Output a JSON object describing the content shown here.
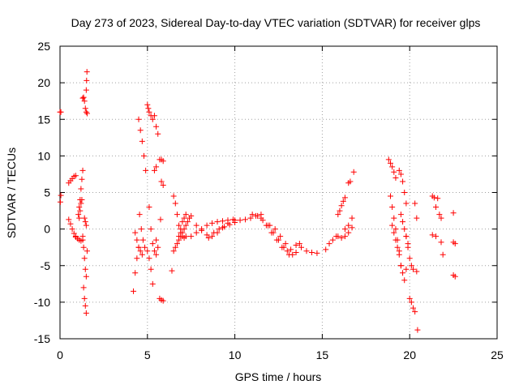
{
  "chart_data": {
    "type": "scatter",
    "title": "Day 273 of 2023, Sidereal Day-to-day VTEC variation (SDTVAR) for receiver glps",
    "xlabel": "GPS time / hours",
    "ylabel": "SDTVAR / TECUs",
    "xlim": [
      0,
      25
    ],
    "ylim": [
      -15,
      25
    ],
    "xticks": [
      0,
      5,
      10,
      15,
      20,
      25
    ],
    "yticks": [
      -15,
      -10,
      -5,
      0,
      5,
      10,
      15,
      20,
      25
    ],
    "grid": true,
    "marker": "+",
    "marker_color": "#ff0000",
    "series": [
      {
        "name": "SDTVAR",
        "segments": [
          {
            "x": [
              0.0,
              0.05
            ],
            "y": [
              16.0,
              16.0
            ]
          },
          {
            "x": [
              0.02,
              0.05
            ],
            "y": [
              3.7,
              4.6
            ]
          },
          {
            "x": [
              0.5,
              0.6,
              0.7,
              0.8,
              0.9
            ],
            "y": [
              6.3,
              6.6,
              6.9,
              7.2,
              7.3
            ]
          },
          {
            "x": [
              0.5,
              0.6,
              0.7,
              0.8,
              0.9
            ],
            "y": [
              1.3,
              0.7,
              0.0,
              -0.6,
              -1.0
            ]
          },
          {
            "x": [
              0.9,
              1.0,
              1.1,
              1.2,
              1.3
            ],
            "y": [
              -1.1,
              -1.3,
              -1.5,
              -1.6,
              -1.5
            ]
          },
          {
            "x": [
              1.05,
              1.1,
              1.15,
              1.2,
              1.25,
              1.3
            ],
            "y": [
              2.0,
              3.0,
              4.0,
              5.5,
              6.8,
              8.0
            ]
          },
          {
            "x": [
              1.1,
              1.15,
              1.2,
              1.25
            ],
            "y": [
              1.5,
              2.5,
              3.5,
              4.0
            ]
          },
          {
            "x": [
              1.3,
              1.35,
              1.4,
              1.45,
              1.5
            ],
            "y": [
              -1.0,
              -2.5,
              -4.0,
              -5.5,
              -6.5
            ]
          },
          {
            "x": [
              1.35,
              1.4,
              1.45,
              1.5
            ],
            "y": [
              -8.0,
              -9.5,
              -10.5,
              -11.5
            ]
          },
          {
            "x": [
              1.3,
              1.35,
              1.4,
              1.45,
              1.5,
              1.55
            ],
            "y": [
              17.9,
              18.0,
              17.5,
              16.5,
              16.0,
              15.8
            ]
          },
          {
            "x": [
              1.5,
              1.52,
              1.54
            ],
            "y": [
              19.0,
              20.3,
              21.5
            ]
          },
          {
            "x": [
              1.4,
              1.45,
              1.5,
              1.55
            ],
            "y": [
              1.5,
              1.0,
              0.5,
              -3.0
            ]
          },
          {
            "x": [
              4.2,
              4.3,
              4.4,
              4.5
            ],
            "y": [
              -8.5,
              -6.0,
              -4.0,
              -2.5
            ]
          },
          {
            "x": [
              4.3,
              4.4,
              4.5,
              4.6,
              4.7
            ],
            "y": [
              -0.5,
              -1.5,
              -2.5,
              -3.0,
              -3.5
            ]
          },
          {
            "x": [
              4.5,
              4.6,
              4.7,
              4.8,
              4.9
            ],
            "y": [
              15.0,
              13.5,
              12.0,
              10.0,
              8.0
            ]
          },
          {
            "x": [
              4.55,
              4.65,
              4.75,
              4.85
            ],
            "y": [
              2.0,
              0.0,
              -1.5,
              -2.5
            ]
          },
          {
            "x": [
              5.0,
              5.05,
              5.1,
              5.2,
              5.3
            ],
            "y": [
              17.0,
              16.5,
              16.0,
              15.5,
              15.0
            ]
          },
          {
            "x": [
              5.0,
              5.1,
              5.2,
              5.3
            ],
            "y": [
              -3.0,
              -4.0,
              -5.5,
              -7.5
            ]
          },
          {
            "x": [
              5.1,
              5.2,
              5.3,
              5.4,
              5.5
            ],
            "y": [
              3.0,
              0.0,
              -2.0,
              -3.0,
              -3.5
            ]
          },
          {
            "x": [
              5.4,
              5.5,
              5.6
            ],
            "y": [
              15.5,
              14.0,
              13.0
            ]
          },
          {
            "x": [
              5.4,
              5.5
            ],
            "y": [
              8.0,
              8.5
            ]
          },
          {
            "x": [
              5.5,
              5.6
            ],
            "y": [
              -1.5,
              -2.5
            ]
          },
          {
            "x": [
              5.7,
              5.8,
              5.9
            ],
            "y": [
              9.5,
              9.5,
              9.3
            ]
          },
          {
            "x": [
              5.7,
              5.8,
              5.9
            ],
            "y": [
              -9.5,
              -9.7,
              -9.8
            ]
          },
          {
            "x": [
              5.8,
              5.9
            ],
            "y": [
              6.5,
              6.0
            ]
          },
          {
            "x": [
              5.75
            ],
            "y": [
              1.3
            ]
          },
          {
            "x": [
              6.4
            ],
            "y": [
              -5.7
            ]
          },
          {
            "x": [
              6.5,
              6.6,
              6.7,
              6.8,
              6.9,
              7.0,
              7.1,
              7.2
            ],
            "y": [
              4.5,
              3.5,
              2.0,
              0.5,
              -0.5,
              -1.0,
              -1.2,
              -1.0
            ]
          },
          {
            "x": [
              6.5,
              6.6,
              6.7,
              6.8,
              6.9,
              7.0,
              7.1,
              7.2
            ],
            "y": [
              -3.0,
              -2.5,
              -2.0,
              -1.0,
              0.0,
              1.0,
              1.5,
              2.0
            ]
          },
          {
            "x": [
              6.8,
              6.9,
              7.0,
              7.1,
              7.2,
              7.3,
              7.4,
              7.5
            ],
            "y": [
              -1.5,
              -1.0,
              -0.5,
              0.0,
              0.5,
              1.0,
              1.5,
              1.8
            ]
          },
          {
            "x": [
              7.5,
              7.8,
              8.1,
              8.4,
              8.7,
              9.0,
              9.3,
              9.6,
              9.9
            ],
            "y": [
              -1.0,
              -0.5,
              0.0,
              0.5,
              0.8,
              1.0,
              1.1,
              1.2,
              1.3
            ]
          },
          {
            "x": [
              7.8,
              8.1,
              8.4,
              8.7,
              9.0,
              9.3,
              9.6
            ],
            "y": [
              0.5,
              -0.2,
              -0.8,
              -1.0,
              -0.5,
              0.2,
              0.8
            ]
          },
          {
            "x": [
              8.5,
              8.8,
              9.1,
              9.4,
              9.7,
              10.0
            ],
            "y": [
              -1.2,
              -0.5,
              0.0,
              0.3,
              0.6,
              0.9
            ]
          },
          {
            "x": [
              10.0,
              10.3,
              10.6,
              10.9,
              11.2,
              11.5
            ],
            "y": [
              1.2,
              1.2,
              1.3,
              1.5,
              1.8,
              2.0
            ]
          },
          {
            "x": [
              11.0,
              11.3,
              11.6,
              11.9,
              12.2,
              12.5,
              12.8,
              13.1
            ],
            "y": [
              2.0,
              1.8,
              1.2,
              0.5,
              -0.5,
              -1.5,
              -2.5,
              -3.5
            ]
          },
          {
            "x": [
              11.5,
              11.8,
              12.1,
              12.4,
              12.7,
              13.0,
              13.3
            ],
            "y": [
              1.5,
              0.5,
              -0.5,
              -1.5,
              -2.5,
              -3.0,
              -3.5
            ]
          },
          {
            "x": [
              12.0,
              12.3,
              12.6,
              12.9,
              13.2,
              13.5
            ],
            "y": [
              0.5,
              0.0,
              -1.0,
              -2.0,
              -2.8,
              -3.2
            ]
          },
          {
            "x": [
              13.5,
              13.8,
              14.1,
              14.4,
              14.7
            ],
            "y": [
              -2.2,
              -2.5,
              -3.0,
              -3.2,
              -3.3
            ]
          },
          {
            "x": [
              13.7
            ],
            "y": [
              -2.0
            ]
          },
          {
            "x": [
              15.2,
              15.4,
              15.6,
              15.8
            ],
            "y": [
              -2.8,
              -2.0,
              -1.5,
              -1.0
            ]
          },
          {
            "x": [
              15.9,
              16.0,
              16.1,
              16.2,
              16.3
            ],
            "y": [
              2.0,
              2.5,
              3.2,
              3.8,
              4.3
            ]
          },
          {
            "x": [
              15.9,
              16.1,
              16.3,
              16.5,
              16.7
            ],
            "y": [
              -1.0,
              -1.2,
              -1.0,
              -0.5,
              0.2
            ]
          },
          {
            "x": [
              16.3,
              16.5,
              16.7
            ],
            "y": [
              0.0,
              0.5,
              1.5
            ]
          },
          {
            "x": [
              16.5,
              16.6
            ],
            "y": [
              6.3,
              6.5
            ]
          },
          {
            "x": [
              16.8
            ],
            "y": [
              7.8
            ]
          },
          {
            "x": [
              18.8,
              18.9,
              19.0,
              19.1,
              19.2
            ],
            "y": [
              9.5,
              9.0,
              8.5,
              7.8,
              7.0
            ]
          },
          {
            "x": [
              18.9,
              19.0,
              19.1,
              19.2,
              19.3,
              19.4
            ],
            "y": [
              4.5,
              3.0,
              1.5,
              0.0,
              -1.5,
              -3.0
            ]
          },
          {
            "x": [
              19.0,
              19.1,
              19.2,
              19.3,
              19.4,
              19.5
            ],
            "y": [
              0.5,
              -0.5,
              -1.5,
              -2.5,
              -3.5,
              -5.0
            ]
          },
          {
            "x": [
              19.5,
              19.6,
              19.7,
              19.8
            ],
            "y": [
              -5.0,
              -6.0,
              -7.0,
              -5.5
            ]
          },
          {
            "x": [
              19.4,
              19.5,
              19.6,
              19.7,
              19.8
            ],
            "y": [
              8.0,
              7.5,
              6.5,
              5.0,
              3.5
            ]
          },
          {
            "x": [
              19.5,
              19.6,
              19.7,
              19.8,
              19.9
            ],
            "y": [
              2.0,
              1.0,
              0.0,
              -1.0,
              -2.0
            ]
          },
          {
            "x": [
              19.8,
              19.9,
              20.0,
              20.1,
              20.2
            ],
            "y": [
              -1.0,
              -2.5,
              -4.0,
              -5.0,
              -5.5
            ]
          },
          {
            "x": [
              20.0,
              20.1,
              20.2,
              20.3
            ],
            "y": [
              -9.5,
              -10.0,
              -10.8,
              -11.3
            ]
          },
          {
            "x": [
              20.3,
              20.4
            ],
            "y": [
              3.5,
              1.5
            ]
          },
          {
            "x": [
              20.4
            ],
            "y": [
              -5.8
            ]
          },
          {
            "x": [
              20.45
            ],
            "y": [
              -13.8
            ]
          },
          {
            "x": [
              21.3,
              21.4,
              21.5
            ],
            "y": [
              4.5,
              4.3,
              3.0
            ]
          },
          {
            "x": [
              21.3,
              21.5
            ],
            "y": [
              -0.8,
              -1.0
            ]
          },
          {
            "x": [
              21.6
            ],
            "y": [
              4.2
            ]
          },
          {
            "x": [
              21.7,
              21.8
            ],
            "y": [
              2.0,
              1.5
            ]
          },
          {
            "x": [
              21.8
            ],
            "y": [
              -1.8
            ]
          },
          {
            "x": [
              21.9
            ],
            "y": [
              -3.5
            ]
          },
          {
            "x": [
              22.5
            ],
            "y": [
              2.2
            ]
          },
          {
            "x": [
              22.5,
              22.6
            ],
            "y": [
              -1.8,
              -2.0
            ]
          },
          {
            "x": [
              22.5,
              22.6
            ],
            "y": [
              -6.3,
              -6.5
            ]
          }
        ]
      }
    ]
  }
}
